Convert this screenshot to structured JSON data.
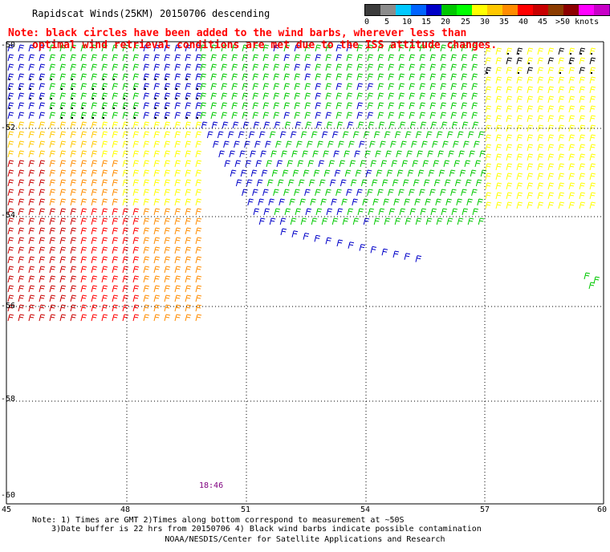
{
  "title": "Rapidscat Winds(25KM) 20150706 descending",
  "note_lines": [
    "Note: black circles have been added to the wind barbs, wherever less than",
    "optimal wind retrieval conditions are met due to the ISS attitude changes."
  ],
  "colorbar": {
    "labels": [
      "0",
      "5",
      "10",
      "15",
      "20",
      "25",
      "30",
      "35",
      "40",
      "45",
      ">50 knots"
    ],
    "colors": [
      "#3c3c3c",
      "#8c8c8c",
      "#00c8ff",
      "#0064ff",
      "#0000c8",
      "#00c800",
      "#00ff00",
      "#ffff00",
      "#ffc800",
      "#ff8c00",
      "#ff0000",
      "#c80000",
      "#8c3c00",
      "#8c0000",
      "#ff00ff",
      "#c800c8",
      "#640096"
    ]
  },
  "axes": {
    "lat_labels": [
      "-50",
      "-52",
      "-54",
      "-56",
      "-58",
      "-60"
    ],
    "lon_labels": [
      "45",
      "48",
      "51",
      "54",
      "57",
      "60"
    ]
  },
  "timestamp": "18:46",
  "footnotes": [
    "Note: 1) Times are GMT 2)Times along bottom correspond to measurement at ~50S",
    "3)Date buffer is 22 hrs from 20150706 4) Black wind barbs indicate possible contamination"
  ],
  "credit": "NOAA/NESDIS/Center for Satellite Applications and Research"
}
